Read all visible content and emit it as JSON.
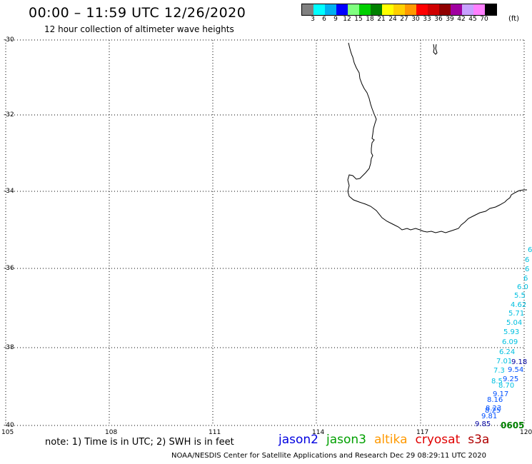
{
  "header": {
    "title": "00:00 – 11:59 UTC 12/26/2020",
    "subtitle": "12 hour collection of altimeter wave heights"
  },
  "colorbar": {
    "colors": [
      "#808080",
      "#00ffff",
      "#00b0f0",
      "#0000ff",
      "#80ff80",
      "#00d000",
      "#008000",
      "#ffff00",
      "#ffd000",
      "#ff9900",
      "#ff0000",
      "#d00000",
      "#900000",
      "#a000a0",
      "#c8a0ff",
      "#ff80ff",
      "#000000"
    ],
    "labels": [
      "3",
      "6",
      "9",
      "12",
      "15",
      "18",
      "21",
      "24",
      "27",
      "30",
      "33",
      "36",
      "39",
      "42",
      "45",
      "70"
    ],
    "units": "(ft)"
  },
  "axes": {
    "lat_labels": [
      "-30",
      "-32",
      "-34",
      "-36",
      "-38",
      "-40"
    ],
    "lon_labels": [
      "105",
      "108",
      "111",
      "114",
      "117",
      "120"
    ]
  },
  "track": {
    "color": "#00c0e0",
    "labels": [
      "6",
      "6",
      "6",
      "6",
      "6.0",
      "5.5",
      "4.62",
      "5.71",
      "5.04",
      "5.93",
      "6.09",
      "6.24",
      "7.01",
      "7.3",
      "8.5",
      "8.70",
      "8.16",
      "8.23",
      "8.25",
      "9.17",
      "9.25",
      "9.54",
      "9.18",
      "9.81",
      "9.85"
    ],
    "time_label": "0605"
  },
  "note": "note: 1) Time is in UTC; 2) SWH is in feet",
  "legend": [
    {
      "name": "jason2",
      "color": "#0000e0"
    },
    {
      "name": "jason3",
      "color": "#00a000"
    },
    {
      "name": "altika",
      "color": "#ff9900"
    },
    {
      "name": "cryosat",
      "color": "#e00000"
    },
    {
      "name": "s3a",
      "color": "#b00000"
    }
  ],
  "footer": "NOAA/NESDIS Center for Satellite Applications and Research    Dec 29 08:29:11 UTC 2020"
}
